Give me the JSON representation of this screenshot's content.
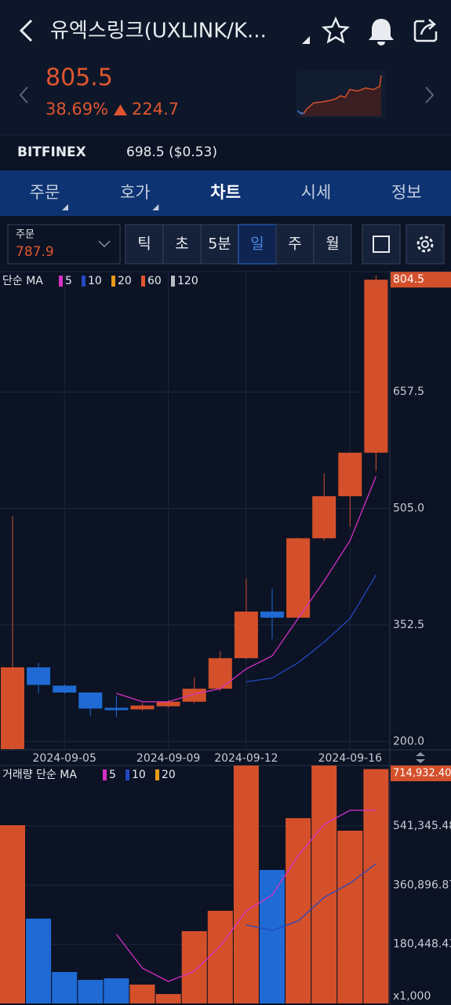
{
  "header": {
    "title": "유엑스링크(UXLINK/K...",
    "price": "805.5",
    "change_pct": "38.69%",
    "change": "224.7"
  },
  "exchange": {
    "name": "BITFINEX",
    "price": "698.5 ($0.53)"
  },
  "tabs": {
    "items": [
      "주문",
      "호가",
      "차트",
      "시세",
      "정보"
    ],
    "active": 2
  },
  "order_box": {
    "label": "주문",
    "value": "787.9"
  },
  "periods": {
    "items": [
      "틱",
      "초",
      "5분",
      "일",
      "주",
      "월"
    ],
    "active": 3
  },
  "chart_data": [
    {
      "type": "candlestick",
      "title": "단순 MA",
      "up_color": "#d4502b",
      "down_color": "#1f6ad4",
      "categories": [
        null,
        null,
        "2024-09-05",
        null,
        null,
        null,
        "2024-09-09",
        null,
        null,
        "2024-09-12",
        null,
        null,
        null,
        "2024-09-16",
        null
      ],
      "open": [
        190,
        297,
        273,
        264,
        244,
        242,
        246,
        252,
        269,
        309,
        370,
        362,
        466,
        521,
        578
      ],
      "high": [
        495,
        303,
        275,
        264,
        260,
        250,
        254,
        284,
        318,
        413,
        400,
        467,
        551,
        578,
        810
      ],
      "low": [
        188,
        263,
        262,
        233,
        232,
        240,
        244,
        250,
        266,
        308,
        334,
        362,
        463,
        481,
        554
      ],
      "close": [
        297,
        274,
        264,
        243,
        241,
        247,
        252,
        269,
        309,
        370,
        362,
        466,
        521,
        578,
        804.5
      ],
      "series": [
        {
          "name": "5",
          "color": "#d630c6",
          "values": [
            null,
            null,
            null,
            null,
            263,
            252,
            252,
            262,
            269,
            295,
            312,
            361,
            410,
            463,
            547
          ]
        },
        {
          "name": "10",
          "color": "#2448c0",
          "values": [
            null,
            null,
            null,
            null,
            null,
            null,
            null,
            null,
            null,
            278,
            283,
            303,
            330,
            361,
            418
          ]
        },
        {
          "name": "20",
          "color": "#e89a1a"
        },
        {
          "name": "60",
          "color": "#e0552f"
        },
        {
          "name": "120",
          "color": "#b8bcc4"
        }
      ],
      "ylim": [
        189,
        814
      ],
      "yticks": [
        {
          "value": 200,
          "label": "200.0"
        },
        352.5,
        {
          "value": 505,
          "label": "505.0"
        },
        657.5
      ],
      "grid": true
    },
    {
      "type": "bar",
      "title": "거래량 단순 MA",
      "unit_label": "x1,000",
      "values": [
        543700,
        258700,
        95800,
        71900,
        76600,
        57500,
        28700,
        220400,
        282600,
        780000,
        407200,
        565300,
        760000,
        527000,
        714932.4
      ],
      "value_labels": [
        null,
        null,
        null,
        null,
        null,
        null,
        null,
        null,
        null,
        null,
        null,
        null,
        null,
        null,
        "714,932.400"
      ],
      "series": [
        {
          "name": "5",
          "color": "#d630c6",
          "values": [
            null,
            null,
            null,
            null,
            210800,
            107800,
            67100,
            98200,
            174900,
            282600,
            330500,
            450300,
            546100,
            589200,
            589200
          ]
        },
        {
          "name": "10",
          "color": "#2448c0",
          "values": [
            null,
            null,
            null,
            null,
            null,
            null,
            null,
            null,
            null,
            239500,
            222800,
            251500,
            323400,
            366500,
            426400
          ]
        },
        {
          "name": "20",
          "color": "#e89a1a"
        }
      ],
      "ylim": [
        0,
        725800
      ],
      "yticks": [
        {
          "value": 180448.437,
          "label": "180,448.437"
        },
        {
          "value": 360896.873,
          "label": "360,896.873"
        },
        {
          "value": 541345.482,
          "label": "541,345.482"
        }
      ],
      "grid": true
    }
  ]
}
